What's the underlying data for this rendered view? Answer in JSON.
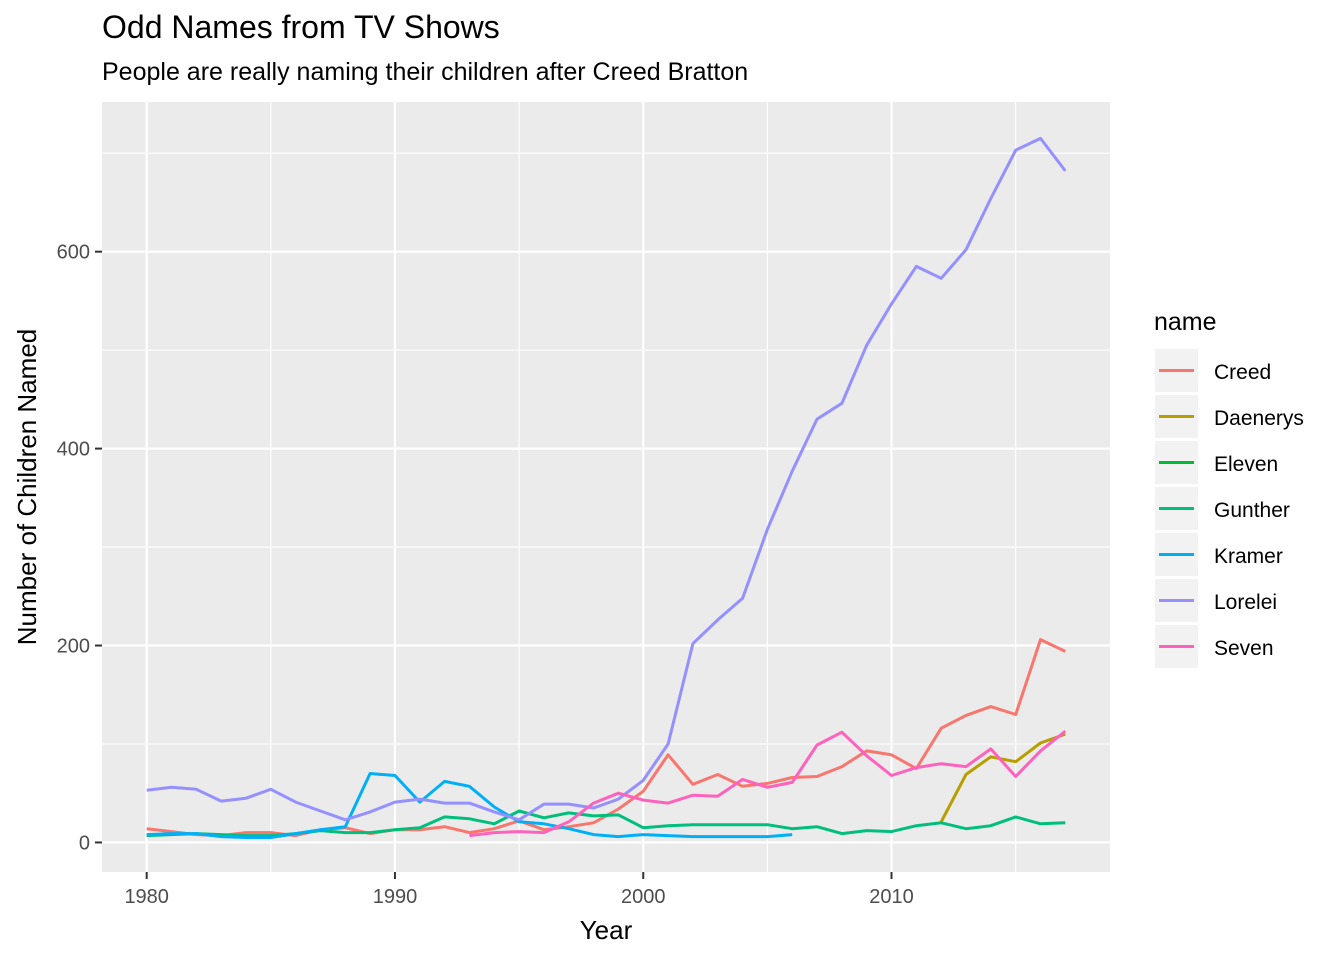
{
  "chart_data": {
    "type": "line",
    "title": "Odd Names from TV Shows",
    "subtitle": "People are really naming their children after Creed Bratton",
    "xlabel": "Year",
    "ylabel": "Number of Children Named",
    "xlim": [
      1978.2,
      2018.8
    ],
    "ylim": [
      -30,
      752
    ],
    "x_ticks": [
      1980,
      1990,
      2000,
      2010
    ],
    "y_ticks": [
      0,
      200,
      400,
      600
    ],
    "grid": true,
    "legend_title": "name",
    "legend_position": "right",
    "series": [
      {
        "name": "Creed",
        "color": "#F8766D",
        "x": [
          1980,
          1981,
          1982,
          1983,
          1984,
          1985,
          1986,
          1987,
          1988,
          1989,
          1990,
          1991,
          1992,
          1993,
          1994,
          1995,
          1996,
          1997,
          1998,
          1999,
          2000,
          2001,
          2002,
          2003,
          2004,
          2005,
          2006,
          2007,
          2008,
          2009,
          2010,
          2011,
          2012,
          2013,
          2014,
          2015,
          2016,
          2017
        ],
        "values": [
          14,
          11,
          8,
          7,
          10,
          10,
          7,
          13,
          15,
          9,
          13,
          13,
          16,
          10,
          14,
          22,
          13,
          16,
          20,
          34,
          52,
          89,
          59,
          69,
          57,
          60,
          66,
          67,
          77,
          93,
          89,
          75,
          116,
          129,
          138,
          130,
          206,
          194
        ]
      },
      {
        "name": "Daenerys",
        "color": "#B79F00",
        "x": [
          2012,
          2013,
          2014,
          2015,
          2016,
          2017
        ],
        "values": [
          21,
          69,
          87,
          82,
          101,
          110
        ]
      },
      {
        "name": "Eleven",
        "color": "#00BA38",
        "x": [],
        "values": []
      },
      {
        "name": "Gunther",
        "color": "#00BF7D",
        "x": [
          1980,
          1981,
          1982,
          1983,
          1984,
          1985,
          1986,
          1987,
          1988,
          1989,
          1990,
          1991,
          1992,
          1993,
          1994,
          1995,
          1996,
          1997,
          1998,
          1999,
          2000,
          2001,
          2002,
          2003,
          2004,
          2005,
          2006,
          2007,
          2008,
          2009,
          2010,
          2011,
          2012,
          2013,
          2014,
          2015,
          2016,
          2017
        ],
        "values": [
          7,
          8,
          9,
          8,
          7,
          7,
          9,
          12,
          10,
          10,
          13,
          15,
          26,
          24,
          19,
          32,
          25,
          30,
          27,
          28,
          15,
          17,
          18,
          18,
          18,
          18,
          14,
          16,
          9,
          12,
          11,
          17,
          20,
          14,
          17,
          26,
          19,
          20
        ]
      },
      {
        "name": "Kramer",
        "color": "#00B0F6",
        "x": [
          1980,
          1981,
          1982,
          1983,
          1984,
          1985,
          1986,
          1987,
          1988,
          1989,
          1990,
          1991,
          1992,
          1993,
          1994,
          1995,
          1996,
          1997,
          1998,
          1999,
          2000,
          2001,
          2002,
          2003,
          2004,
          2005,
          2006
        ],
        "values": [
          8,
          9,
          9,
          6,
          5,
          5,
          9,
          13,
          16,
          70,
          68,
          41,
          62,
          57,
          36,
          21,
          19,
          14,
          8,
          6,
          8,
          7,
          6,
          6,
          6,
          6,
          8
        ]
      },
      {
        "name": "Lorelei",
        "color": "#9590FF",
        "x": [
          1980,
          1981,
          1982,
          1983,
          1984,
          1985,
          1986,
          1987,
          1988,
          1989,
          1990,
          1991,
          1992,
          1993,
          1994,
          1995,
          1996,
          1997,
          1998,
          1999,
          2000,
          2001,
          2002,
          2003,
          2004,
          2005,
          2006,
          2007,
          2008,
          2009,
          2010,
          2011,
          2012,
          2013,
          2014,
          2015,
          2016,
          2017
        ],
        "values": [
          53,
          56,
          54,
          42,
          45,
          54,
          41,
          32,
          23,
          31,
          41,
          44,
          40,
          40,
          31,
          23,
          39,
          39,
          35,
          44,
          63,
          100,
          202,
          226,
          248,
          318,
          377,
          430,
          446,
          505,
          547,
          585,
          573,
          602,
          654,
          703,
          715,
          682
        ]
      },
      {
        "name": "Seven",
        "color": "#FF62BC",
        "x": [
          1993,
          1994,
          1995,
          1996,
          1997,
          1998,
          1999,
          2000,
          2001,
          2002,
          2003,
          2004,
          2005,
          2006,
          2007,
          2008,
          2009,
          2010,
          2011,
          2012,
          2013,
          2014,
          2015,
          2016,
          2017
        ],
        "values": [
          7,
          10,
          11,
          10,
          21,
          40,
          50,
          43,
          40,
          48,
          47,
          64,
          56,
          61,
          99,
          112,
          88,
          68,
          76,
          80,
          77,
          95,
          67,
          93,
          113
        ]
      }
    ]
  }
}
